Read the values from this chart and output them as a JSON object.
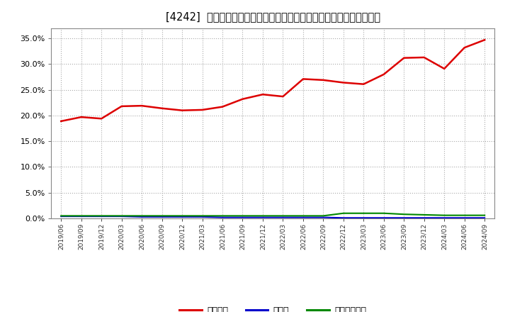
{
  "title": "[4242]  自己資本、のれん、繰延税金資産の総資産に対する比率の推移",
  "x_labels": [
    "2019/06",
    "2019/09",
    "2019/12",
    "2020/03",
    "2020/06",
    "2020/09",
    "2020/12",
    "2021/03",
    "2021/06",
    "2021/09",
    "2021/12",
    "2022/03",
    "2022/06",
    "2022/09",
    "2022/12",
    "2023/03",
    "2023/06",
    "2023/09",
    "2023/12",
    "2024/03",
    "2024/06",
    "2024/09"
  ],
  "equity_ratio": [
    0.189,
    0.197,
    0.194,
    0.218,
    0.219,
    0.214,
    0.21,
    0.211,
    0.217,
    0.232,
    0.241,
    0.237,
    0.271,
    0.269,
    0.264,
    0.261,
    0.28,
    0.312,
    0.313,
    0.291,
    0.332,
    0.347
  ],
  "goodwill_ratio": [
    0.004,
    0.004,
    0.004,
    0.004,
    0.003,
    0.003,
    0.003,
    0.003,
    0.002,
    0.002,
    0.002,
    0.002,
    0.002,
    0.002,
    0.001,
    0.001,
    0.001,
    0.001,
    0.001,
    0.001,
    0.001,
    0.001
  ],
  "deferred_tax_ratio": [
    0.005,
    0.005,
    0.005,
    0.005,
    0.005,
    0.005,
    0.005,
    0.005,
    0.005,
    0.005,
    0.005,
    0.005,
    0.005,
    0.005,
    0.01,
    0.01,
    0.01,
    0.008,
    0.007,
    0.006,
    0.006,
    0.006
  ],
  "equity_color": "#dd0000",
  "goodwill_color": "#0000cc",
  "deferred_tax_color": "#008800",
  "bg_color": "#ffffff",
  "grid_color": "#aaaaaa",
  "legend_labels": [
    "自己資本",
    "のれん",
    "繰延税金資産"
  ],
  "ylim": [
    0.0,
    0.37
  ],
  "yticks": [
    0.0,
    0.05,
    0.1,
    0.15,
    0.2,
    0.25,
    0.3,
    0.35
  ]
}
